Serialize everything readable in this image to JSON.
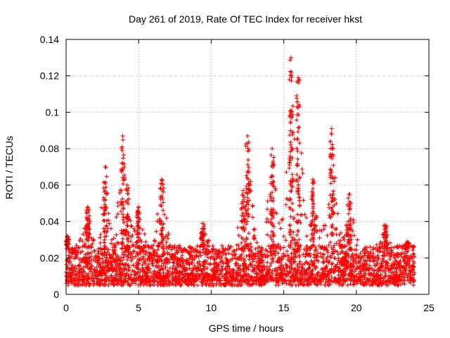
{
  "chart_data": {
    "type": "scatter",
    "title": "Day 261 of 2019, Rate Of TEC Index for receiver hkst",
    "xlabel": "GPS time / hours",
    "ylabel": "ROTI / TECUs",
    "xlim": [
      0,
      25
    ],
    "ylim": [
      0,
      0.14
    ],
    "xticks": [
      0,
      5,
      10,
      15,
      20,
      25
    ],
    "xtick_labels": [
      "0",
      "5",
      "10",
      "15",
      "20",
      "25"
    ],
    "yticks": [
      0,
      0.02,
      0.04,
      0.06,
      0.08,
      0.1,
      0.12,
      0.14
    ],
    "ytick_labels": [
      "0",
      "0.02",
      "0.04",
      "0.06",
      "0.08",
      "0.1",
      "0.12",
      "0.14"
    ],
    "grid": true,
    "marker": "+",
    "color": "#ff0000",
    "series": [
      {
        "name": "ROTI",
        "x_range": [
          0,
          24
        ],
        "baseline_range": [
          0.005,
          0.025
        ],
        "notable_peaks": [
          {
            "x": 0.1,
            "y": 0.032
          },
          {
            "x": 1.5,
            "y": 0.048
          },
          {
            "x": 2.7,
            "y": 0.07
          },
          {
            "x": 3.9,
            "y": 0.087
          },
          {
            "x": 4.2,
            "y": 0.06
          },
          {
            "x": 5.0,
            "y": 0.048
          },
          {
            "x": 6.6,
            "y": 0.063
          },
          {
            "x": 9.4,
            "y": 0.039
          },
          {
            "x": 12.2,
            "y": 0.057
          },
          {
            "x": 12.5,
            "y": 0.087
          },
          {
            "x": 14.2,
            "y": 0.08
          },
          {
            "x": 15.5,
            "y": 0.13
          },
          {
            "x": 16.0,
            "y": 0.119
          },
          {
            "x": 17.0,
            "y": 0.063
          },
          {
            "x": 18.3,
            "y": 0.091
          },
          {
            "x": 19.5,
            "y": 0.055
          },
          {
            "x": 22.0,
            "y": 0.038
          },
          {
            "x": 23.5,
            "y": 0.029
          }
        ]
      }
    ]
  }
}
